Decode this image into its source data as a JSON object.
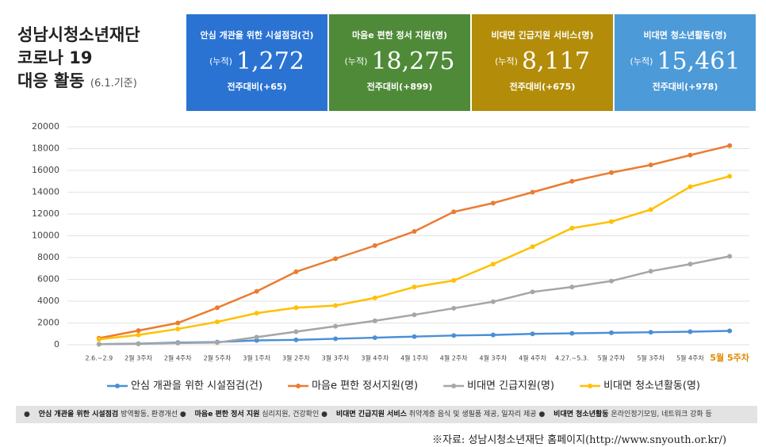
{
  "header": {
    "title_lines": [
      "성남시청소년재단",
      "코로나 19",
      "대응 활동"
    ],
    "date": "(6.1.기준)"
  },
  "cards": [
    {
      "title": "안심 개관을 위한 시설점검(건)",
      "prefix": "(누적)",
      "value": "1,272",
      "change": "전주대비(+65)",
      "color": "#2b73d3"
    },
    {
      "title": "마음e 편한 정서 지원(명)",
      "prefix": "(누적)",
      "value": "18,275",
      "change": "전주대비(+899)",
      "color": "#4f8a38"
    },
    {
      "title": "비대면 긴급지원 서비스(명)",
      "prefix": "(누적)",
      "value": "8,117",
      "change": "전주대비(+675)",
      "color": "#b38d0a"
    },
    {
      "title": "비대면 청소년활동(명)",
      "prefix": "(누적)",
      "value": "15,461",
      "change": "전주대비(+978)",
      "color": "#4d9ad8"
    }
  ],
  "chart_data": {
    "type": "line",
    "categories": [
      "2.6.~2.9",
      "2월 3주차",
      "2월 4주차",
      "2월 5주차",
      "3월 1주차",
      "3월 2주차",
      "3월 3주차",
      "3월 4주차",
      "4월 1주차",
      "4월 2주차",
      "4월 3주차",
      "4월 4주차",
      "4.27.~5.3.",
      "5월 2주차",
      "5월 3주차",
      "5월 4주차",
      "5월 5주차"
    ],
    "series": [
      {
        "name": "안심 개관을 위한 시설점검(건)",
        "color": "#4a8fd6",
        "values": [
          50,
          100,
          200,
          250,
          400,
          450,
          550,
          650,
          750,
          850,
          900,
          1000,
          1050,
          1100,
          1150,
          1200,
          1272
        ]
      },
      {
        "name": "마음e 편한 정서지원(명)",
        "color": "#ec7b30",
        "values": [
          600,
          1300,
          2000,
          3400,
          4900,
          6700,
          7900,
          9100,
          10400,
          12200,
          13000,
          14000,
          15000,
          15800,
          16500,
          17400,
          18275
        ]
      },
      {
        "name": "비대면 긴급지원(명)",
        "color": "#a6a6a6",
        "values": [
          50,
          80,
          150,
          200,
          700,
          1200,
          1700,
          2200,
          2750,
          3350,
          3950,
          4850,
          5300,
          5850,
          6750,
          7400,
          8117
        ]
      },
      {
        "name": "비대면 청소년활동(명)",
        "color": "#ffc000",
        "values": [
          500,
          900,
          1450,
          2100,
          2900,
          3400,
          3600,
          4300,
          5300,
          5900,
          7400,
          9000,
          10700,
          11300,
          12400,
          14500,
          15461
        ]
      }
    ],
    "ylim": [
      0,
      20000
    ],
    "yticks": [
      0,
      2000,
      4000,
      6000,
      8000,
      10000,
      12000,
      14000,
      16000,
      18000,
      20000
    ],
    "grid": true,
    "legend": "bottom"
  },
  "footer": [
    {
      "name": "안심 개관을 위한 시설점검",
      "desc": "방역활동, 환경개선"
    },
    {
      "name": "마음e 편한 정서 지원",
      "desc": "심리지원, 건강확인"
    },
    {
      "name": "비대면 긴급지원 서비스",
      "desc": "취약계층 음식 및 생필품 제공, 일자리 제공"
    },
    {
      "name": "비대면 청소년활동",
      "desc": "온라인정기모임, 네트워크 강화 등"
    }
  ],
  "source": "※자료: 성남시청소년재단 홈페이지(http://www.snyouth.or.kr/)"
}
